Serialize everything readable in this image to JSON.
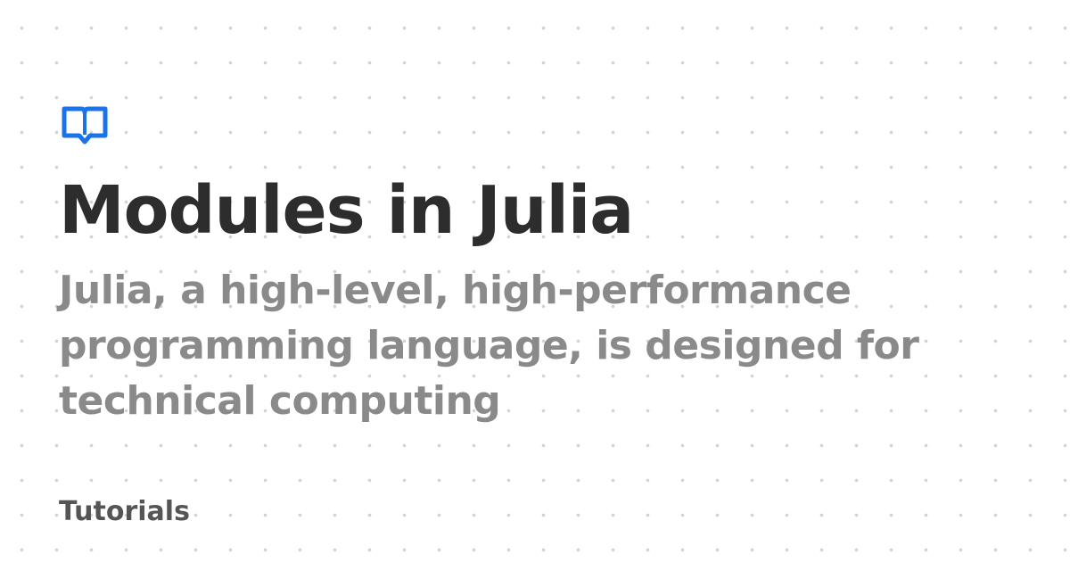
{
  "logo": {
    "icon": "book-icon",
    "color": "#1a73e8"
  },
  "article": {
    "title": "Modules in Julia",
    "subtitle": "Julia, a high-level, high-performance programming language, is designed for technical computing",
    "category": "Tutorials"
  },
  "colors": {
    "title": "#2d2d2d",
    "subtitle": "#8a8a8a",
    "category": "#555555",
    "dots": "#d2d2d2"
  }
}
